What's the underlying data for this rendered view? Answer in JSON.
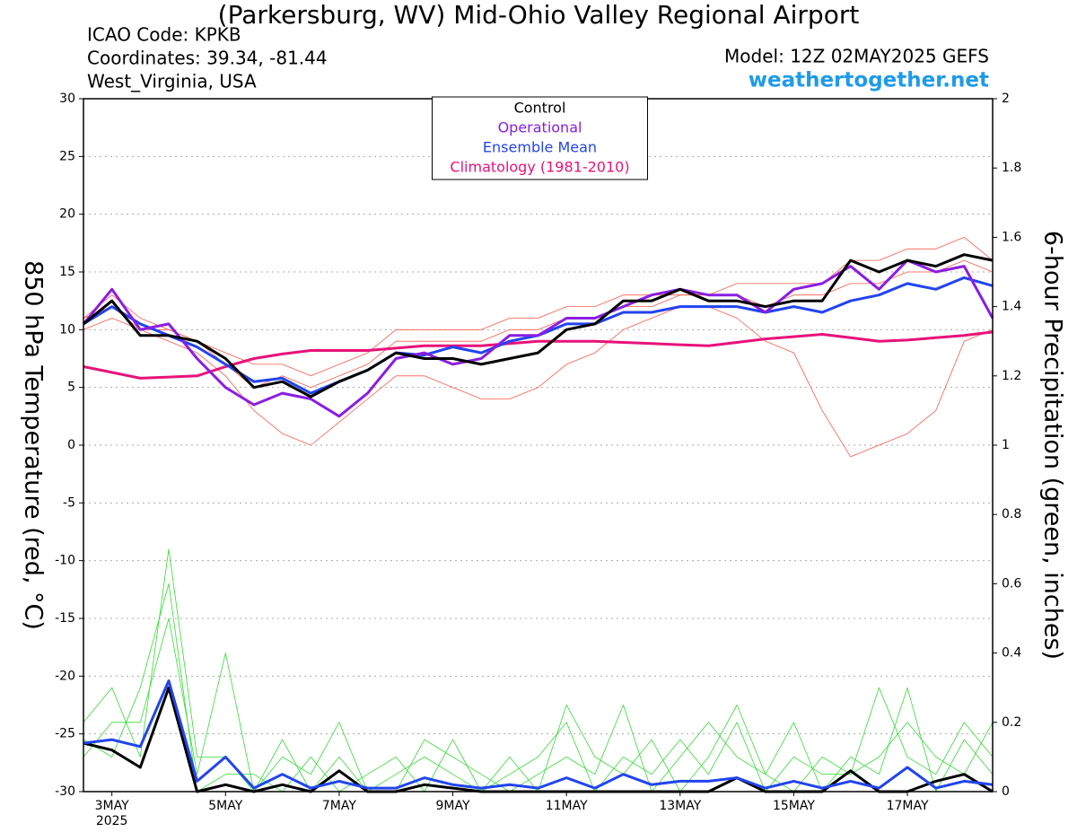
{
  "chart_data": {
    "type": "line",
    "title": "(Parkersburg, WV) Mid-Ohio Valley Regional Airport",
    "info": [
      "ICAO Code: KPKB",
      "Coordinates: 39.34, -81.44",
      "West_Virginia, USA"
    ],
    "model": "Model: 12Z 02MAY2025 GEFS",
    "site": "weathertogether.net",
    "ylabel": "850 hPa Temperature (red, °C)",
    "y2label": "6-hour Precipitation (green, inches)",
    "x_sublabel": "2025",
    "x": [
      2.5,
      3,
      3.5,
      4,
      4.5,
      5,
      5.5,
      6,
      6.5,
      7,
      7.5,
      8,
      8.5,
      9,
      9.5,
      10,
      10.5,
      11,
      11.5,
      12,
      12.5,
      13,
      13.5,
      14,
      14.5,
      15,
      15.5,
      16,
      16.5,
      17,
      17.5,
      18,
      18.5
    ],
    "xlim": [
      2.5,
      18.5
    ],
    "xticks": [
      {
        "value": 3,
        "label": "3MAY"
      },
      {
        "value": 5,
        "label": "5MAY"
      },
      {
        "value": 7,
        "label": "7MAY"
      },
      {
        "value": 9,
        "label": "9MAY"
      },
      {
        "value": 11,
        "label": "11MAY"
      },
      {
        "value": 13,
        "label": "13MAY"
      },
      {
        "value": 15,
        "label": "15MAY"
      },
      {
        "value": 17,
        "label": "17MAY"
      }
    ],
    "ylim": [
      -30,
      30
    ],
    "yticks": [
      -30,
      -25,
      -20,
      -15,
      -10,
      -5,
      0,
      5,
      10,
      15,
      20,
      25,
      30
    ],
    "y2lim": [
      0,
      2
    ],
    "y2ticks": [
      0,
      0.2,
      0.4,
      0.6,
      0.8,
      1,
      1.2,
      1.4,
      1.6,
      1.8,
      2
    ],
    "grid": true,
    "legend": "top-center",
    "series": [
      {
        "color": "#ff5a4a",
        "linewidth": 0.8,
        "values": [
          11,
          12,
          10,
          10,
          9,
          7,
          5,
          6,
          5,
          6,
          7,
          9,
          9,
          9,
          9,
          10,
          10,
          11,
          11,
          12,
          12,
          13,
          13,
          13,
          12,
          13,
          13,
          14,
          14,
          15,
          15,
          16,
          15
        ]
      },
      {
        "color": "#ff5a4a",
        "linewidth": 0.8,
        "values": [
          10,
          11,
          10,
          9,
          8,
          6,
          3,
          1,
          0,
          2,
          4,
          6,
          6,
          5,
          4,
          4,
          5,
          7,
          8,
          10,
          11,
          12,
          12,
          11,
          9,
          8,
          3,
          -1,
          0,
          1,
          3,
          9,
          10
        ]
      },
      {
        "color": "#ff5a4a",
        "linewidth": 0.8,
        "values": [
          11,
          13,
          11,
          10,
          9,
          8,
          7,
          7,
          6,
          7,
          8,
          10,
          10,
          10,
          10,
          11,
          11,
          12,
          12,
          13,
          13,
          13,
          13,
          14,
          14,
          14,
          14,
          16,
          16,
          17,
          17,
          18,
          16
        ]
      },
      {
        "color": "#33dd33",
        "linewidth": 0.8,
        "axis": "y2",
        "values": [
          0.2,
          0.3,
          0.1,
          0.7,
          0.1,
          0.1,
          0,
          0.15,
          0,
          0.1,
          0,
          0.05,
          0.1,
          0.05,
          0,
          0.05,
          0.1,
          0.2,
          0,
          0.1,
          0.05,
          0.15,
          0.05,
          0.2,
          0,
          0.1,
          0.05,
          0.05,
          0.3,
          0.1,
          0.05,
          0.2,
          0.1
        ]
      },
      {
        "color": "#33dd33",
        "linewidth": 0.8,
        "axis": "y2",
        "values": [
          0.1,
          0.2,
          0.2,
          0.5,
          0.05,
          0.4,
          0,
          0.1,
          0.05,
          0.2,
          0,
          0,
          0.15,
          0.1,
          0.05,
          0,
          0.05,
          0.1,
          0.05,
          0.25,
          0,
          0.1,
          0.2,
          0.1,
          0.05,
          0.2,
          0,
          0.1,
          0.05,
          0.3,
          0,
          0.15,
          0.05
        ]
      },
      {
        "color": "#33dd33",
        "linewidth": 0.8,
        "axis": "y2",
        "values": [
          0.15,
          0.1,
          0.3,
          0.6,
          0,
          0.05,
          0.05,
          0,
          0.1,
          0,
          0.05,
          0.1,
          0,
          0.15,
          0,
          0.1,
          0,
          0.25,
          0.1,
          0.05,
          0.15,
          0,
          0.1,
          0.25,
          0.05,
          0,
          0.1,
          0.05,
          0.1,
          0.2,
          0.1,
          0.05,
          0.2
        ]
      },
      {
        "name": "Climatology (1981-2010)",
        "color": "#e8127a",
        "linewidth": 3,
        "values": [
          6.8,
          6.3,
          5.8,
          5.9,
          6,
          6.8,
          7.5,
          7.9,
          8.2,
          8.2,
          8.2,
          8.4,
          8.6,
          8.6,
          8.6,
          8.8,
          9,
          9,
          9,
          8.9,
          8.8,
          8.7,
          8.6,
          8.9,
          9.2,
          9.4,
          9.6,
          9.3,
          9,
          9.1,
          9.3,
          9.5,
          9.8
        ]
      },
      {
        "color": "#000000",
        "linewidth": 3,
        "axis": "y2",
        "values": [
          0.14,
          0.12,
          0.07,
          0.3,
          0,
          0.02,
          0,
          0.02,
          0,
          0.06,
          0,
          0,
          0.02,
          0.01,
          0,
          0,
          0,
          0,
          0,
          0,
          0,
          0,
          0,
          0.04,
          0,
          0,
          0,
          0.06,
          0,
          0,
          0.03,
          0.05,
          0
        ]
      },
      {
        "color": "#2244ee",
        "linewidth": 3,
        "axis": "y2",
        "values": [
          0.14,
          0.15,
          0.13,
          0.32,
          0.03,
          0.1,
          0.01,
          0.05,
          0.01,
          0.03,
          0.01,
          0.01,
          0.04,
          0.02,
          0.01,
          0.02,
          0.01,
          0.04,
          0.01,
          0.05,
          0.02,
          0.03,
          0.03,
          0.04,
          0.01,
          0.03,
          0.01,
          0.03,
          0.01,
          0.07,
          0.01,
          0.03,
          0.02
        ]
      },
      {
        "name": "Ensemble Mean",
        "color": "#2244ee",
        "linewidth": 3,
        "values": [
          10.5,
          12,
          10.5,
          9.5,
          8.5,
          7,
          5.5,
          5.8,
          4.5,
          5.5,
          6.5,
          8,
          7.8,
          8.5,
          8,
          9,
          9.5,
          10.5,
          10.5,
          11.5,
          11.5,
          12,
          12,
          12,
          11.5,
          12,
          11.5,
          12.5,
          13,
          14,
          13.5,
          14.5,
          13.8
        ]
      },
      {
        "name": "Operational",
        "color": "#8a1ee0",
        "linewidth": 3,
        "values": [
          10.5,
          13.5,
          10,
          10.5,
          7.5,
          5,
          3.5,
          4.5,
          4,
          2.5,
          4.5,
          7.5,
          8,
          7,
          7.5,
          9.5,
          9.5,
          11,
          11,
          12,
          13,
          13.5,
          13,
          13,
          11.5,
          13.5,
          14,
          15.5,
          13.5,
          16,
          15,
          15.5,
          11
        ]
      },
      {
        "name": "Control",
        "color": "#000000",
        "linewidth": 3,
        "values": [
          10.5,
          12.5,
          9.5,
          9.5,
          9,
          7.5,
          5,
          5.5,
          4.2,
          5.5,
          6.5,
          8,
          7.5,
          7.5,
          7,
          7.5,
          8,
          10,
          10.5,
          12.5,
          12.5,
          13.5,
          12.5,
          12.5,
          12,
          12.5,
          12.5,
          16,
          15,
          16,
          15.5,
          16.5,
          16
        ]
      }
    ]
  }
}
